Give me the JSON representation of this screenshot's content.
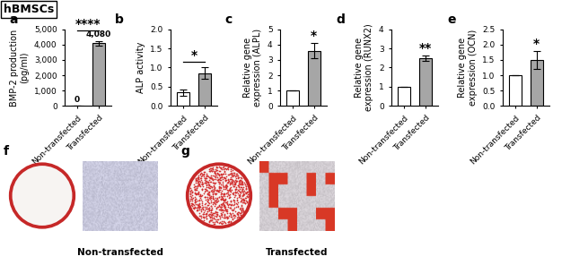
{
  "header": "hBMSCs",
  "chart_data": [
    {
      "type": "bar",
      "title": "a",
      "y_label": "BMP-2 production\n(pg/ml)",
      "categories": [
        "Non-transfected",
        "Transfected"
      ],
      "values": [
        0,
        4080
      ],
      "errors": [
        0,
        150
      ],
      "value_labels": [
        "0",
        "4,080"
      ],
      "data_labels": true,
      "colors": [
        "#ffffff",
        "#a6a6a6"
      ],
      "ylim": [
        0,
        5000
      ],
      "yticks": [
        0,
        {
          "value": 1000,
          "label": "1,000"
        },
        {
          "value": 2000,
          "label": "2,000"
        },
        {
          "value": 3000,
          "label": "3,000"
        },
        {
          "value": 4000,
          "label": "4,000"
        },
        {
          "value": 5000,
          "label": "5,000"
        }
      ],
      "annotation": {
        "text": "****",
        "between": [
          "Non-transfected",
          "Transfected"
        ]
      }
    },
    {
      "type": "bar",
      "title": "b",
      "y_label": "ALP activity",
      "categories": [
        "Non-transfected",
        "Transfected"
      ],
      "values": [
        0.35,
        0.85
      ],
      "errors": [
        0.08,
        0.15
      ],
      "colors": [
        "#ffffff",
        "#a6a6a6"
      ],
      "ylim": [
        0,
        2
      ],
      "yticks": [
        {
          "value": 0,
          "label": "0.0"
        },
        0.5,
        {
          "value": 1,
          "label": "1.0"
        },
        1.5,
        {
          "value": 2,
          "label": "2.0"
        }
      ],
      "annotation": {
        "text": "*",
        "between": [
          "Non-transfected",
          "Transfected"
        ]
      }
    },
    {
      "type": "bar",
      "title": "c",
      "y_label": "Relative gene\nexpression (ALPL)",
      "categories": [
        "Non-transfected",
        "Transfected"
      ],
      "values": [
        1,
        3.6
      ],
      "errors": [
        0,
        0.5
      ],
      "colors": [
        "#ffffff",
        "#a6a6a6"
      ],
      "ylim": [
        0,
        5
      ],
      "yticks": [
        0,
        1,
        2,
        3,
        4,
        5
      ],
      "annotation": {
        "text": "*",
        "over": "Transfected"
      }
    },
    {
      "type": "bar",
      "title": "d",
      "y_label": "Relative gene\nexpression (RUNX2)",
      "categories": [
        "Non-transfected",
        "Transfected"
      ],
      "values": [
        1,
        2.5
      ],
      "errors": [
        0,
        0.15
      ],
      "colors": [
        "#ffffff",
        "#a6a6a6"
      ],
      "ylim": [
        0,
        4
      ],
      "yticks": [
        0,
        1,
        2,
        3,
        4
      ],
      "annotation": {
        "text": "**",
        "over": "Transfected"
      }
    },
    {
      "type": "bar",
      "title": "e",
      "y_label": "Relative gene\nexpression (OCN)",
      "categories": [
        "Non-transfected",
        "Transfected"
      ],
      "values": [
        1,
        1.5
      ],
      "errors": [
        0,
        0.3
      ],
      "colors": [
        "#ffffff",
        "#a6a6a6"
      ],
      "ylim": [
        0,
        2.5
      ],
      "yticks": [
        {
          "value": 0,
          "label": "0.0"
        },
        0.5,
        {
          "value": 1,
          "label": "1.0"
        },
        1.5,
        {
          "value": 2,
          "label": "2.0"
        },
        2.5
      ],
      "annotation": {
        "text": "*",
        "over": "Transfected"
      }
    }
  ],
  "images": [
    {
      "panel": "f",
      "caption": "Non-transfected"
    },
    {
      "panel": "g",
      "caption": "Transfected"
    }
  ]
}
